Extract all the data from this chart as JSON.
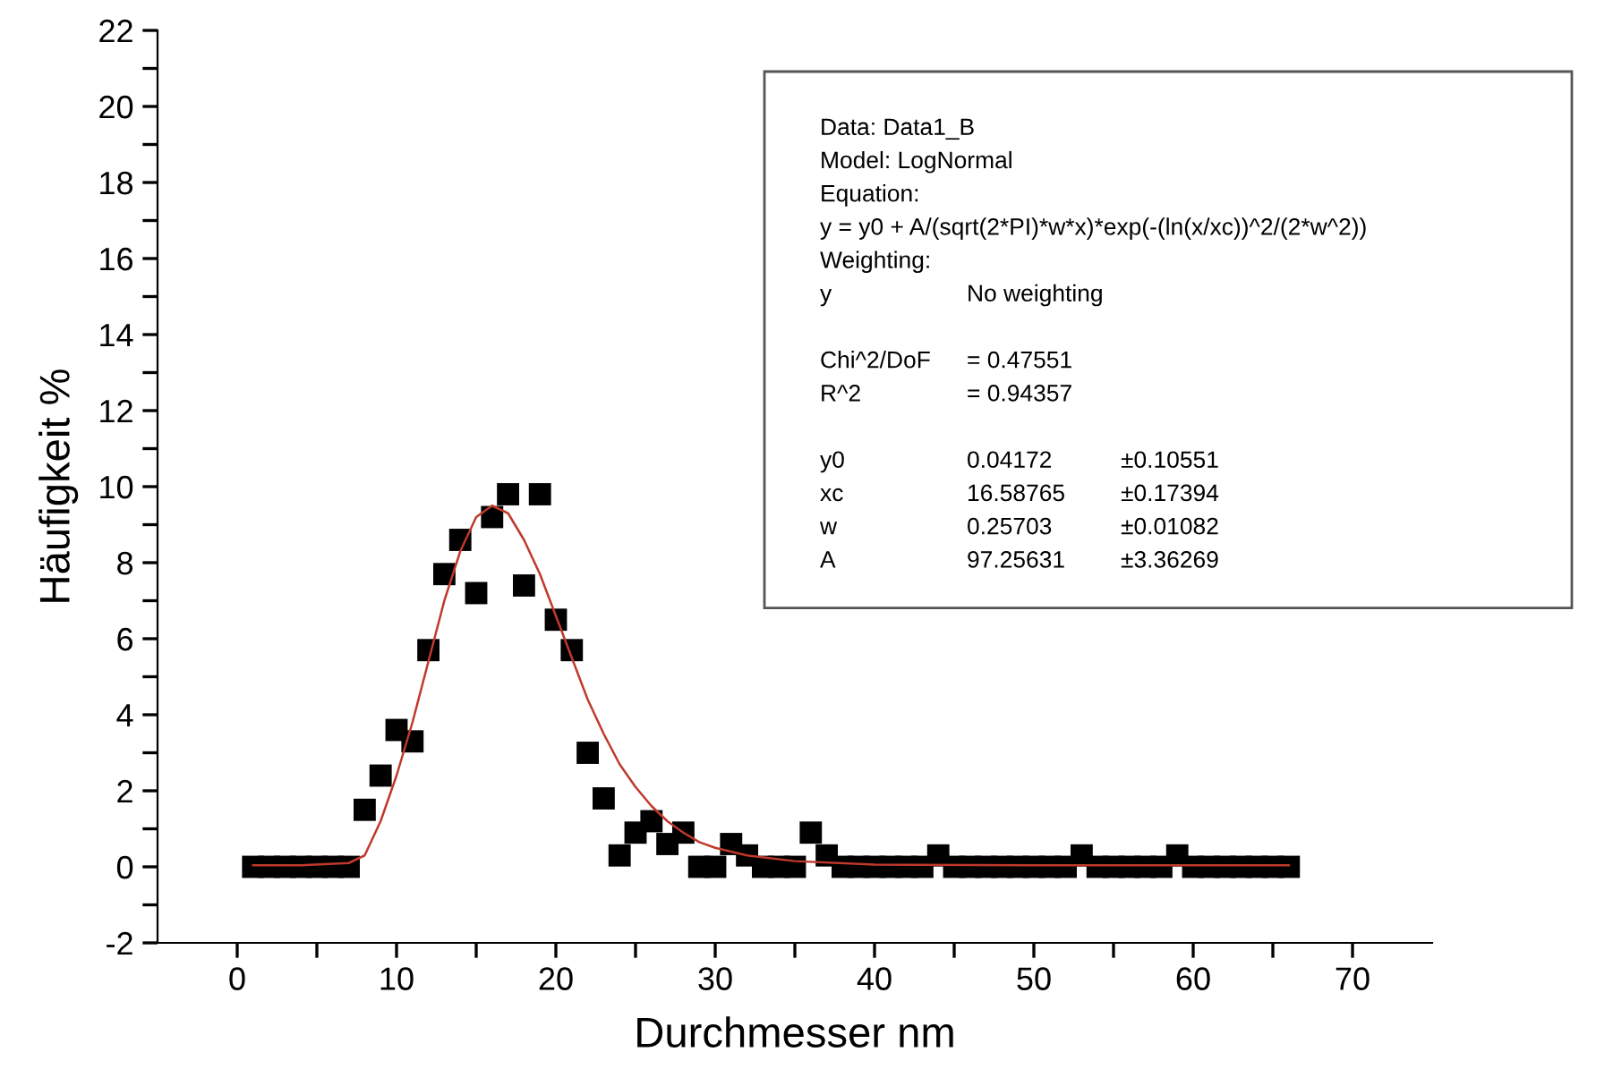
{
  "chart_data": {
    "type": "scatter",
    "xlabel": "Durchmesser nm",
    "ylabel": "Häufigkeit %",
    "xlim": [
      -5,
      75
    ],
    "ylim": [
      -2,
      22
    ],
    "xticks": [
      0,
      {
        "value": 5,
        "label": null
      },
      10,
      {
        "value": 15,
        "label": null
      },
      20,
      {
        "value": 25,
        "label": null
      },
      30,
      {
        "value": 35,
        "label": null
      },
      40,
      {
        "value": 45,
        "label": null
      },
      50,
      {
        "value": 55,
        "label": null
      },
      60,
      {
        "value": 65,
        "label": null
      },
      70
    ],
    "yticks": [
      -2,
      {
        "value": -1,
        "label": null
      },
      0,
      {
        "value": 1,
        "label": null
      },
      2,
      {
        "value": 3,
        "label": null
      },
      4,
      {
        "value": 5,
        "label": null
      },
      6,
      {
        "value": 7,
        "label": null
      },
      8,
      {
        "value": 9,
        "label": null
      },
      10,
      {
        "value": 11,
        "label": null
      },
      12,
      {
        "value": 13,
        "label": null
      },
      14,
      {
        "value": 15,
        "label": null
      },
      16,
      {
        "value": 17,
        "label": null
      },
      18,
      {
        "value": 19,
        "label": null
      },
      20,
      {
        "value": 21,
        "label": null
      },
      22
    ],
    "grid": false,
    "legend": false,
    "series": [
      {
        "color": "#000000",
        "marker": "square",
        "x": [
          1,
          2,
          3,
          4,
          5,
          6,
          7,
          8,
          9,
          10,
          11,
          12,
          13,
          14,
          15,
          16,
          17,
          18,
          19,
          20,
          21,
          22,
          23,
          24,
          25,
          26,
          27,
          28,
          29,
          30,
          31,
          32,
          33,
          34,
          35,
          36,
          37,
          38,
          39,
          40,
          41,
          42,
          43,
          44,
          45,
          46,
          47,
          48,
          49,
          50,
          51,
          52,
          53,
          54,
          55,
          56,
          57,
          58,
          59,
          60,
          61,
          62,
          63,
          64,
          65,
          66
        ],
        "values": [
          0,
          0,
          0,
          0,
          0,
          0,
          0,
          1.5,
          2.4,
          3.6,
          3.3,
          5.7,
          7.7,
          8.6,
          7.2,
          9.2,
          9.8,
          7.4,
          9.8,
          6.5,
          5.7,
          3.0,
          1.8,
          0.3,
          0.9,
          1.2,
          0.6,
          0.9,
          0,
          0,
          0.6,
          0.3,
          0,
          0,
          0,
          0.9,
          0.3,
          0,
          0,
          0,
          0,
          0,
          0,
          0.3,
          0,
          0,
          0,
          0,
          0,
          0,
          0,
          0,
          0.3,
          0,
          0,
          0,
          0,
          0,
          0.3,
          0,
          0,
          0,
          0,
          0,
          0,
          0
        ]
      },
      {
        "type": "line",
        "color": "#c0392b",
        "marker": "none",
        "line_style": "solid",
        "x": [
          1,
          4,
          7,
          8,
          9,
          10,
          11,
          12,
          13,
          14,
          15,
          16,
          17,
          18,
          19,
          20,
          21,
          22,
          23,
          24,
          25,
          26,
          27,
          28,
          29,
          30,
          32,
          35,
          40,
          50,
          66
        ],
        "values": [
          0.04,
          0.04,
          0.1,
          0.3,
          1.2,
          2.4,
          3.8,
          5.4,
          7.0,
          8.3,
          9.2,
          9.5,
          9.3,
          8.6,
          7.7,
          6.6,
          5.5,
          4.4,
          3.5,
          2.7,
          2.1,
          1.6,
          1.2,
          0.9,
          0.65,
          0.5,
          0.3,
          0.15,
          0.06,
          0.04,
          0.04
        ]
      }
    ],
    "annotations": [
      "Data: Data1_B\nModel: LogNormal\nEquation:\ny = y0 + A/(sqrt(2*PI)*w*x)*exp(-(ln(x/xc))^2/(2*w^2))\nWeighting:\ny\tNo weighting",
      "Chi^2/DoF\t= 0.47551\nR^2\t= 0.94357",
      "y0\t0.04172\t±0.10551\nxc\t16.58765\t±0.17394\nw\t0.25703\t±0.01082\nA\t97.25631\t±3.36269"
    ]
  }
}
